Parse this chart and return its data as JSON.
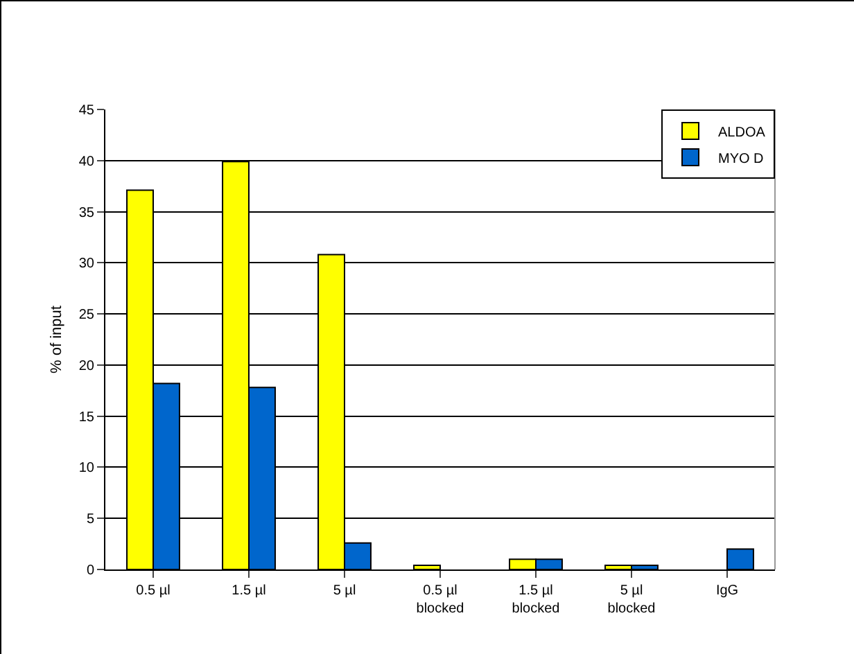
{
  "chart_data": {
    "type": "bar",
    "ylabel": "% of input",
    "categories": [
      "0.5 µl",
      "1.5 µl",
      "5 µl",
      "0.5 µl\nblocked",
      "1.5 µl\nblocked",
      "5 µl\nblocked",
      "IgG"
    ],
    "series": [
      {
        "name": "ALDOA",
        "color": "#ffff00",
        "values": [
          37.1,
          39.9,
          30.8,
          0.4,
          1.0,
          0.4,
          0
        ]
      },
      {
        "name": "MYO D",
        "color": "#0066cc",
        "values": [
          18.2,
          17.8,
          2.6,
          0,
          1.0,
          0.4,
          2.0
        ]
      }
    ],
    "ylim": [
      0,
      45
    ],
    "yticks": [
      0,
      5,
      10,
      15,
      20,
      25,
      30,
      35,
      40,
      45
    ],
    "grid": "y",
    "legend": "top right"
  }
}
